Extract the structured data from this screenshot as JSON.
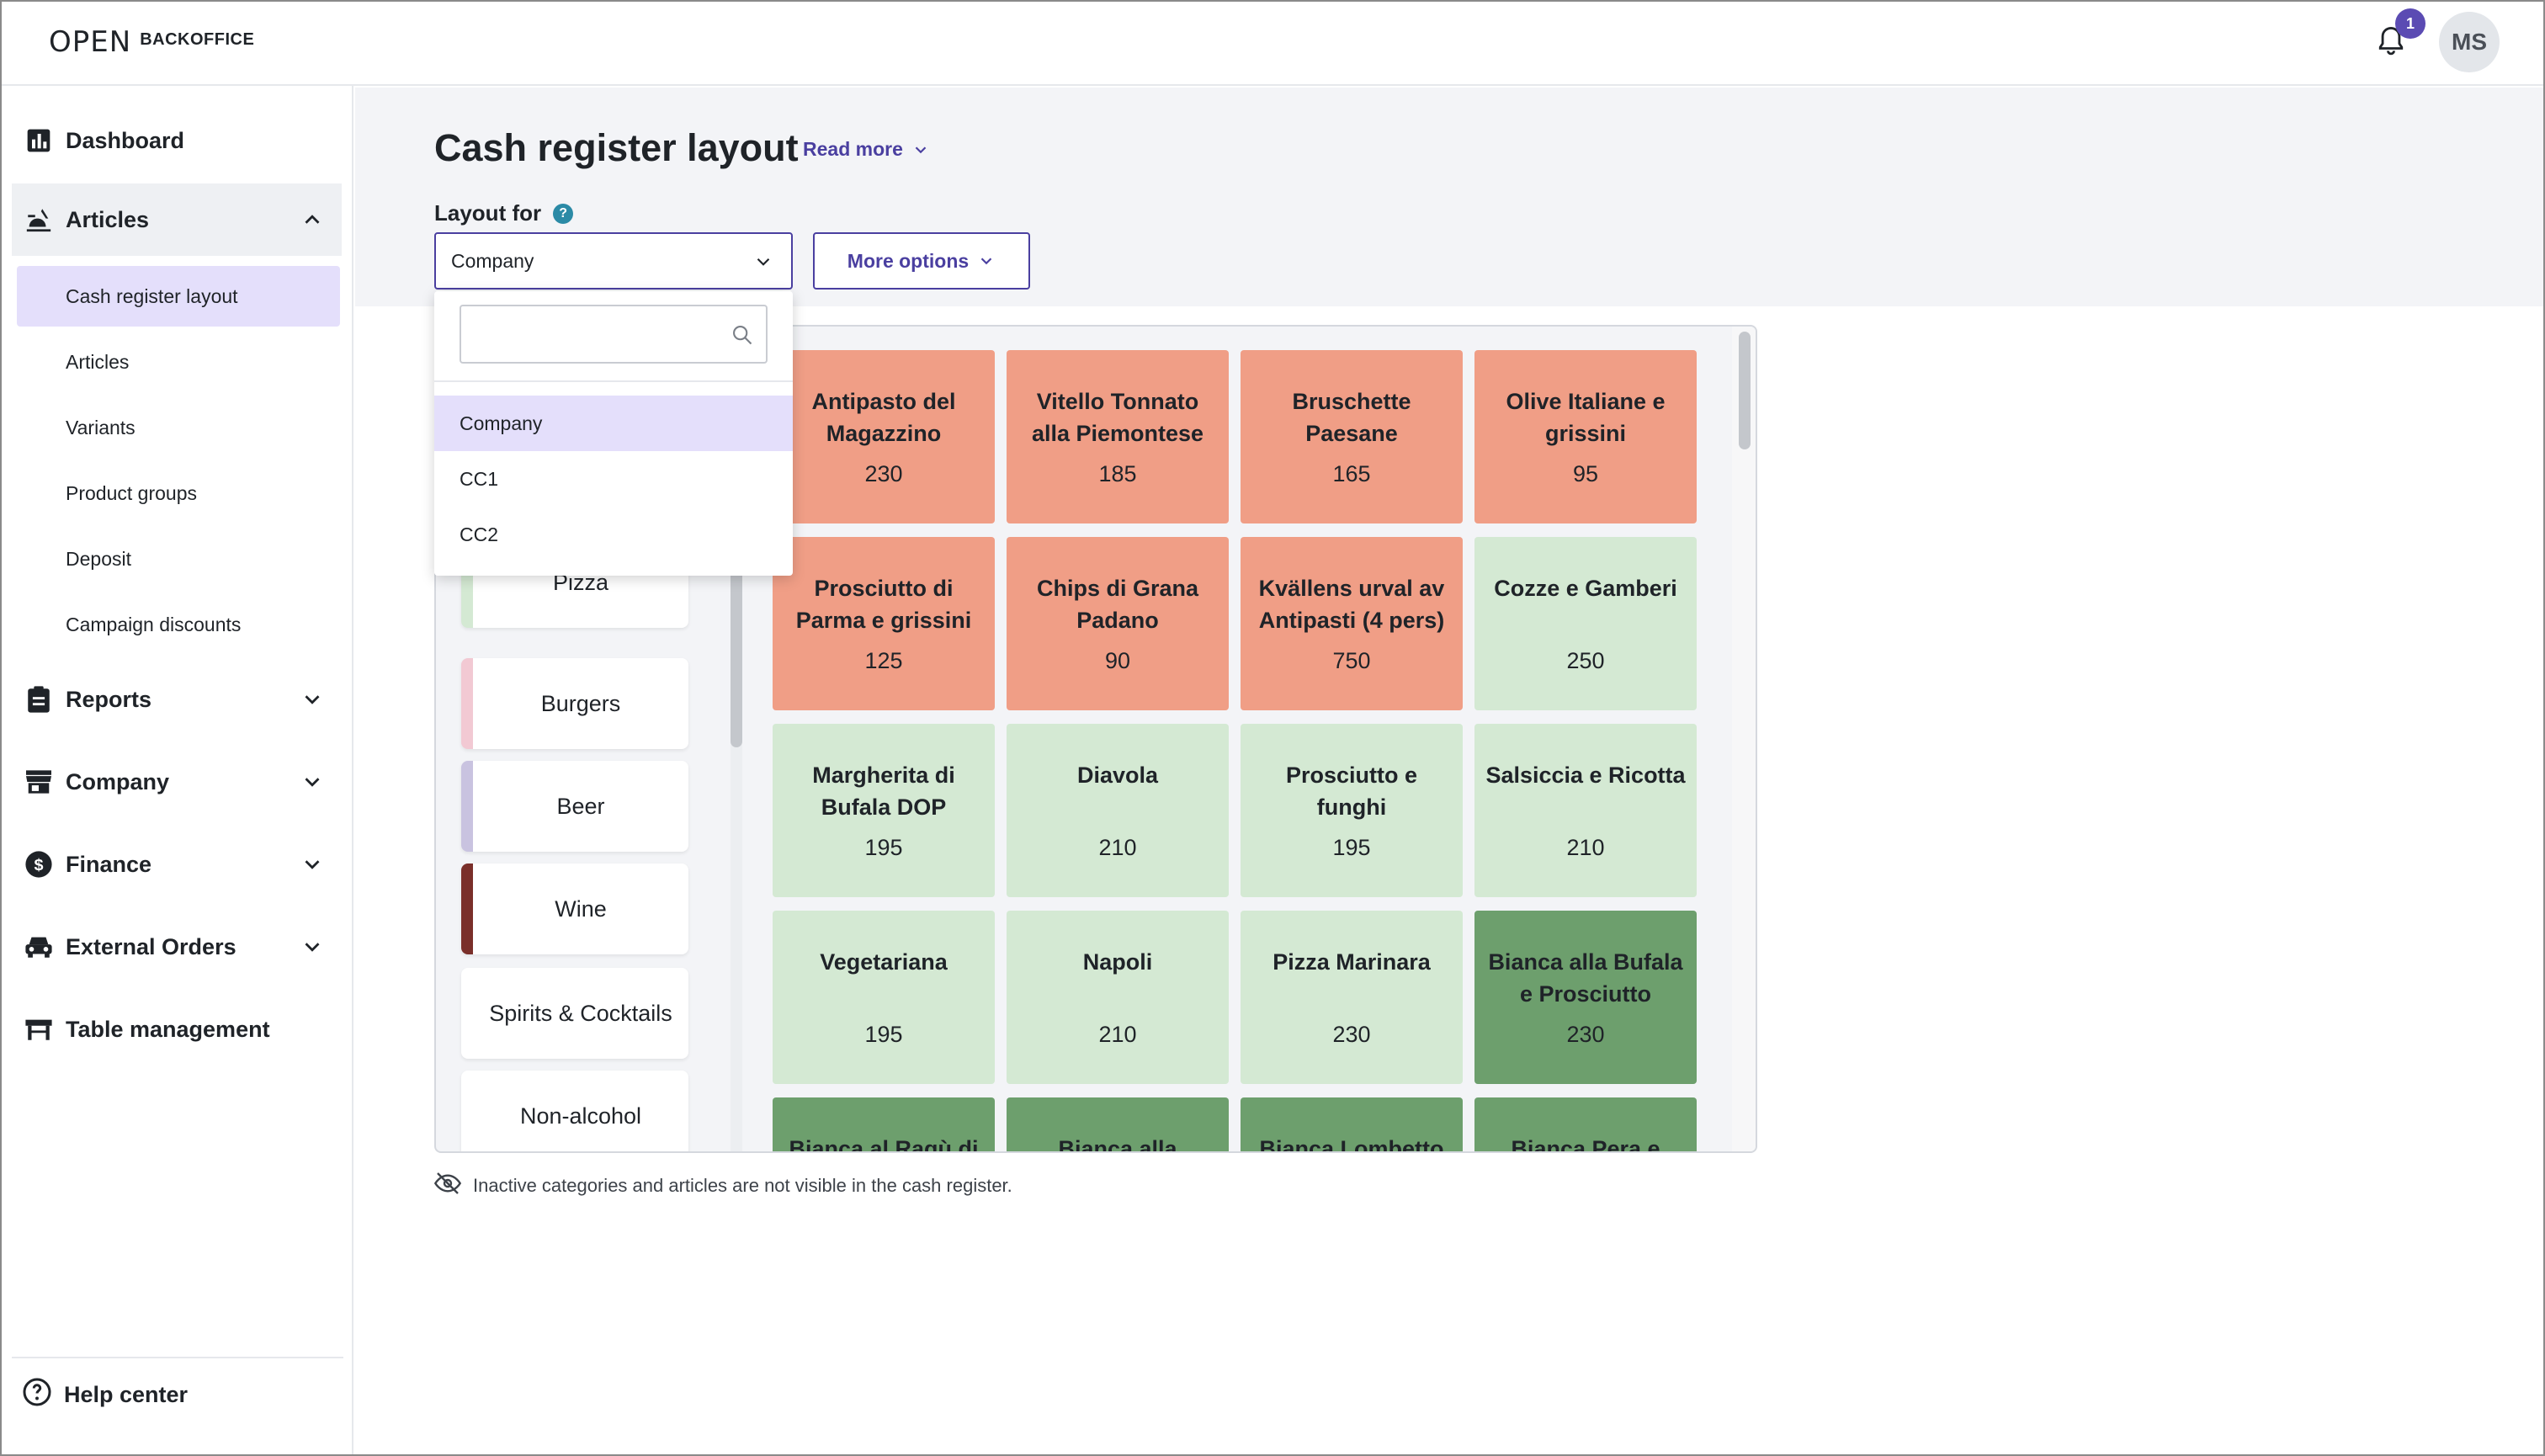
{
  "app": {
    "logo_mark": "OPEN",
    "logo_text": "BACKOFFICE"
  },
  "topbar": {
    "notification_count": "1",
    "avatar_initials": "MS"
  },
  "sidebar": {
    "items": [
      {
        "label": "Dashboard",
        "icon": "chart-icon"
      },
      {
        "label": "Articles",
        "icon": "food-icon",
        "expanded": true,
        "children": [
          {
            "label": "Cash register layout",
            "active": true
          },
          {
            "label": "Articles"
          },
          {
            "label": "Variants"
          },
          {
            "label": "Product groups"
          },
          {
            "label": "Deposit"
          },
          {
            "label": "Campaign discounts"
          }
        ]
      },
      {
        "label": "Reports",
        "icon": "clipboard-icon"
      },
      {
        "label": "Company",
        "icon": "store-icon"
      },
      {
        "label": "Finance",
        "icon": "dollar-icon"
      },
      {
        "label": "External Orders",
        "icon": "car-icon"
      },
      {
        "label": "Table management",
        "icon": "table-icon"
      }
    ],
    "help_center": "Help center"
  },
  "main": {
    "title": "Cash register layout",
    "read_more": "Read more",
    "layout_for_label": "Layout for",
    "layout_for_value": "Company",
    "more_options": "More options",
    "inactive_note": "Inactive categories and articles are not visible in the cash register."
  },
  "dropdown": {
    "search_placeholder": "",
    "options": [
      "Company",
      "CC1",
      "CC2"
    ],
    "selected": "Company"
  },
  "categories": [
    {
      "label": "Pizza",
      "color": "#d4e9d3"
    },
    {
      "label": "Burgers",
      "color": "#f2c9d3"
    },
    {
      "label": "Beer",
      "color": "#c9c3e0"
    },
    {
      "label": "Wine",
      "color": "#7a2f2a"
    },
    {
      "label": "Spirits & Cocktails",
      "color": "#ffffff"
    },
    {
      "label": "Non-alcohol",
      "color": "#ffffff"
    }
  ],
  "articles": [
    {
      "name": "Antipasto del Magazzino",
      "price": "230",
      "color": "salmon"
    },
    {
      "name": "Vitello Tonnato alla Piemontese",
      "price": "185",
      "color": "salmon"
    },
    {
      "name": "Bruschette Paesane",
      "price": "165",
      "color": "salmon"
    },
    {
      "name": "Olive Italiane e grissini",
      "price": "95",
      "color": "salmon"
    },
    {
      "name": "Prosciutto di Parma e grissini",
      "price": "125",
      "color": "salmon"
    },
    {
      "name": "Chips di Grana Padano",
      "price": "90",
      "color": "salmon"
    },
    {
      "name": "Kvällens urval av Antipasti (4 pers)",
      "price": "750",
      "color": "salmon"
    },
    {
      "name": "Cozze e Gamberi",
      "price": "250",
      "color": "mint"
    },
    {
      "name": "Margherita di Bufala DOP",
      "price": "195",
      "color": "mint"
    },
    {
      "name": "Diavola",
      "price": "210",
      "color": "mint"
    },
    {
      "name": "Prosciutto e funghi",
      "price": "195",
      "color": "mint"
    },
    {
      "name": "Salsiccia e Ricotta",
      "price": "210",
      "color": "mint"
    },
    {
      "name": "Vegetariana",
      "price": "195",
      "color": "mint"
    },
    {
      "name": "Napoli",
      "price": "210",
      "color": "mint"
    },
    {
      "name": "Pizza Marinara",
      "price": "230",
      "color": "mint"
    },
    {
      "name": "Bianca alla Bufala e Prosciutto",
      "price": "230",
      "color": "green"
    },
    {
      "name": "Bianca al Ragù di",
      "price": "",
      "color": "green"
    },
    {
      "name": "Bianca alla",
      "price": "",
      "color": "green"
    },
    {
      "name": "Bianca Lombetto",
      "price": "",
      "color": "green"
    },
    {
      "name": "Bianca Pera e",
      "price": "",
      "color": "green"
    }
  ],
  "colors": {
    "accent": "#4a3fa0",
    "salmon": "#f09e86",
    "mint": "#d4e9d3",
    "green": "#6d9f6d",
    "active_bg": "#e4dffb"
  }
}
